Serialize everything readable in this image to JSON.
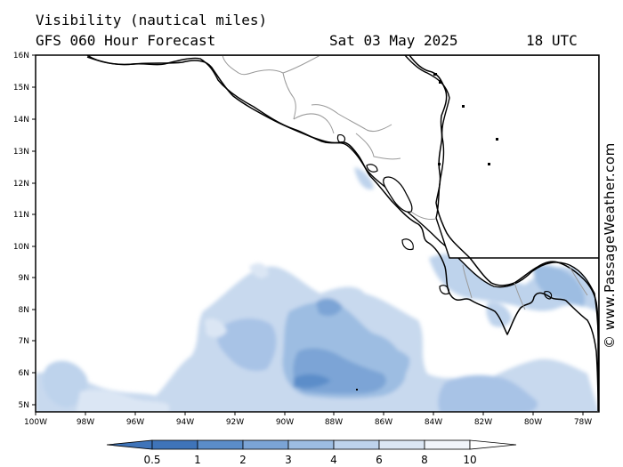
{
  "header": {
    "title": "Visibility (nautical miles)",
    "subtitle": "GFS 060 Hour Forecast",
    "date": "Sat 03 May 2025",
    "time": "18 UTC"
  },
  "credit": "© www.PassageWeather.com",
  "map": {
    "lat_labels": [
      "16N",
      "15N",
      "14N",
      "13N",
      "12N",
      "11N",
      "10N",
      "9N",
      "8N",
      "7N",
      "6N",
      "5N"
    ],
    "lon_labels": [
      "100W",
      "98W",
      "96W",
      "94W",
      "92W",
      "90W",
      "88W",
      "86W",
      "84W",
      "82W",
      "80W",
      "78W"
    ],
    "land_color": "#ffffff",
    "sea_color": "#ffffff",
    "coast_color": "#000000",
    "border_color": "#9a9a9a"
  },
  "colorbar": {
    "labels": [
      "0.5",
      "1",
      "2",
      "3",
      "4",
      "6",
      "8",
      "10"
    ],
    "colors": [
      "#3f74b9",
      "#5b8dc9",
      "#7ba4d6",
      "#9dbde2",
      "#bed3ec",
      "#dbe6f4",
      "#f1f5fb"
    ]
  }
}
